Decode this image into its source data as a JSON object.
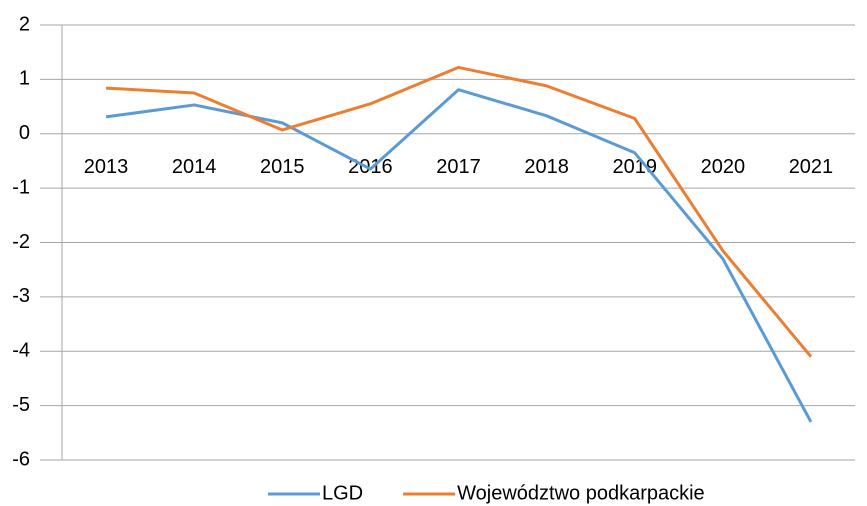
{
  "chart_data": {
    "type": "line",
    "categories": [
      "2013",
      "2014",
      "2015",
      "2016",
      "2017",
      "2018",
      "2019",
      "2020",
      "2021"
    ],
    "series": [
      {
        "name": "LGD",
        "color": "#5b9bd5",
        "values": [
          0.31,
          0.53,
          0.2,
          -0.65,
          0.81,
          0.33,
          -0.35,
          -2.3,
          -5.3
        ]
      },
      {
        "name": "Województwo podkarpackie",
        "color": "#ed7d31",
        "values": [
          0.84,
          0.75,
          0.07,
          0.55,
          1.22,
          0.88,
          0.28,
          -2.15,
          -4.1
        ]
      }
    ],
    "ylim": [
      -6,
      2
    ],
    "yticks": [
      -6,
      -5,
      -4,
      -3,
      -2,
      -1,
      0,
      1,
      2
    ],
    "grid": true
  }
}
